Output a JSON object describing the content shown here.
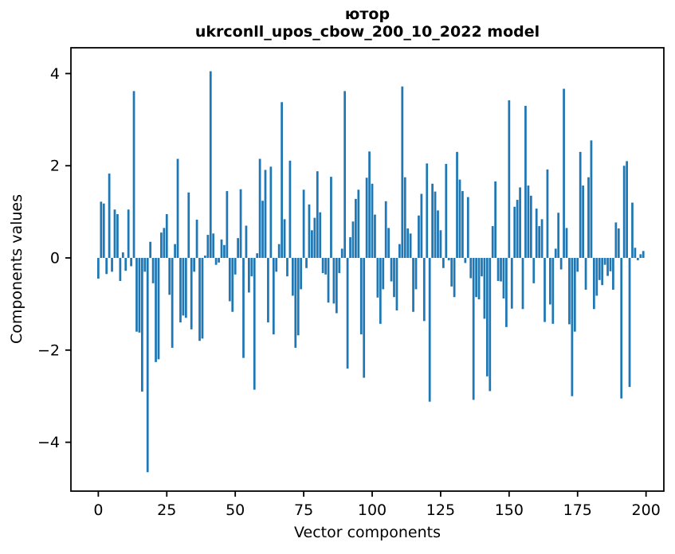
{
  "figure": {
    "title": "ютор",
    "subtitle": "ukrconll_upos_cbow_200_10_2022 model",
    "xlabel": "Vector components",
    "ylabel": "Components values"
  },
  "chart_data": {
    "type": "bar",
    "title": "ютор",
    "subtitle": "ukrconll_upos_cbow_200_10_2022 model",
    "xlabel": "Vector components",
    "ylabel": "Components values",
    "bar_color": "#1f77b4",
    "axis_color": "#000000",
    "grid": false,
    "legend_position": "none",
    "xlim": [
      -10,
      206.5
    ],
    "ylim": [
      -5.06,
      4.56
    ],
    "xticks": [
      0,
      25,
      50,
      75,
      100,
      125,
      150,
      175,
      200
    ],
    "yticks": [
      -4,
      -2,
      0,
      2,
      4
    ],
    "x_start": 0,
    "values": [
      -0.45,
      1.22,
      1.18,
      -0.35,
      1.83,
      -0.3,
      1.05,
      0.95,
      -0.5,
      0.12,
      -0.28,
      1.05,
      -0.18,
      3.62,
      -1.6,
      -1.62,
      -2.9,
      -0.3,
      -4.65,
      0.35,
      -0.55,
      -2.26,
      -2.2,
      0.55,
      0.65,
      0.95,
      -0.8,
      -1.95,
      0.3,
      2.15,
      -1.4,
      -1.25,
      -1.3,
      1.42,
      -1.55,
      -0.3,
      0.83,
      -1.8,
      -1.75,
      0.05,
      0.5,
      4.05,
      0.53,
      -0.15,
      -0.1,
      0.4,
      0.28,
      1.45,
      -0.94,
      -1.17,
      -0.36,
      0.43,
      1.49,
      -2.17,
      0.7,
      -0.75,
      -0.4,
      -2.86,
      0.1,
      2.15,
      1.24,
      1.91,
      -1.4,
      1.98,
      -1.66,
      -0.3,
      0.3,
      3.38,
      0.84,
      -0.4,
      2.11,
      -0.82,
      -1.95,
      -1.68,
      -0.68,
      1.48,
      -0.22,
      1.16,
      0.6,
      0.87,
      1.88,
      0.99,
      -0.33,
      -0.36,
      -0.97,
      1.76,
      -0.99,
      -1.2,
      -0.33,
      0.2,
      3.62,
      -2.4,
      0.45,
      0.79,
      1.28,
      1.48,
      -1.66,
      -2.6,
      1.74,
      2.31,
      1.61,
      0.94,
      -0.86,
      -1.43,
      -0.68,
      1.23,
      0.65,
      -0.51,
      -0.85,
      -1.14,
      0.3,
      3.72,
      1.75,
      0.64,
      0.53,
      -1.17,
      -0.68,
      0.92,
      1.39,
      -1.37,
      2.05,
      -3.12,
      1.61,
      1.44,
      1.03,
      0.6,
      -0.22,
      2.04,
      -0.05,
      -0.62,
      -0.85,
      2.3,
      1.7,
      1.45,
      -0.11,
      1.32,
      -0.44,
      -3.08,
      -0.85,
      -0.9,
      -0.4,
      -1.32,
      -2.57,
      -2.89,
      0.69,
      1.66,
      -0.5,
      -0.51,
      -0.88,
      -1.5,
      3.42,
      -1.1,
      1.11,
      1.26,
      1.53,
      -1.11,
      3.3,
      1.57,
      1.35,
      -0.55,
      1.07,
      0.69,
      0.84,
      -1.39,
      1.92,
      -1.01,
      -1.43,
      0.2,
      0.98,
      -0.25,
      3.67,
      0.65,
      -1.44,
      -3.0,
      -1.6,
      -0.3,
      2.3,
      1.57,
      -0.69,
      1.75,
      2.55,
      -1.11,
      -0.82,
      -0.48,
      -0.59,
      -0.15,
      -0.39,
      -0.29,
      -0.69,
      0.77,
      0.64,
      -3.05,
      2.0,
      2.1,
      -2.8,
      1.2,
      0.22,
      -0.05,
      0.08,
      0.15
    ]
  }
}
